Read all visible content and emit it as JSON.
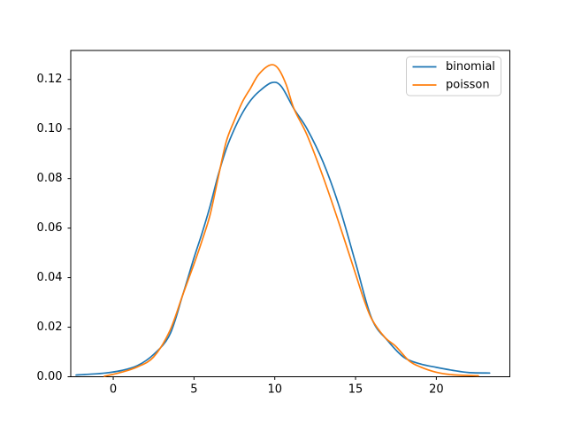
{
  "figure": {
    "background": "#ffffff",
    "plot_background": "#ffffff",
    "spine_color": "#000000"
  },
  "chart_data": {
    "type": "line",
    "title": "",
    "xlabel": "",
    "ylabel": "",
    "grid": false,
    "xlim": [
      -2.63,
      24.55
    ],
    "ylim": [
      0,
      0.1317
    ],
    "xticks": {
      "values": [
        0,
        5,
        10,
        15,
        20
      ],
      "labels": [
        "0",
        "5",
        "10",
        "15",
        "20"
      ]
    },
    "yticks": {
      "values": [
        0.0,
        0.02,
        0.04,
        0.06,
        0.08,
        0.1,
        0.12
      ],
      "labels": [
        "0.00",
        "0.02",
        "0.04",
        "0.06",
        "0.08",
        "0.10",
        "0.12"
      ]
    },
    "legend": {
      "position": "upper right"
    },
    "series": [
      {
        "name": "binomial",
        "color": "#1f77b4",
        "x": [
          -2.3,
          -1.5,
          -0.5,
          0.5,
          1.5,
          2.5,
          3.5,
          4.3,
          5,
          5.5,
          6,
          6.5,
          7,
          7.5,
          8,
          8.5,
          9,
          9.8,
          10.4,
          11.2,
          12,
          13,
          14,
          15,
          16,
          17,
          18,
          19,
          20,
          21,
          22,
          23.3
        ],
        "y": [
          0.0007,
          0.001,
          0.0015,
          0.0025,
          0.0045,
          0.009,
          0.017,
          0.033,
          0.048,
          0.058,
          0.069,
          0.0815,
          0.092,
          0.1,
          0.1065,
          0.1115,
          0.115,
          0.1187,
          0.1172,
          0.108,
          0.1,
          0.0865,
          0.0685,
          0.046,
          0.0235,
          0.0145,
          0.0078,
          0.0052,
          0.0038,
          0.0026,
          0.0017,
          0.0015
        ]
      },
      {
        "name": "poisson",
        "color": "#ff7f0e",
        "x": [
          -0.55,
          0.5,
          1.5,
          2.5,
          3.5,
          4.3,
          5,
          5.5,
          6,
          6.5,
          7,
          7.5,
          8,
          8.5,
          9,
          9.7,
          10.2,
          10.7,
          11.2,
          12,
          13,
          14,
          15,
          15.5,
          16,
          16.8,
          17.5,
          18.3,
          19,
          20,
          21,
          22.6
        ],
        "y": [
          0.0002,
          0.0018,
          0.004,
          0.008,
          0.0185,
          0.033,
          0.0455,
          0.055,
          0.0655,
          0.0805,
          0.095,
          0.1035,
          0.111,
          0.1165,
          0.122,
          0.1258,
          0.1245,
          0.118,
          0.108,
          0.0975,
          0.0805,
          0.0615,
          0.0415,
          0.0315,
          0.0233,
          0.016,
          0.0122,
          0.0065,
          0.004,
          0.0018,
          0.0008,
          0.0004
        ]
      }
    ]
  }
}
